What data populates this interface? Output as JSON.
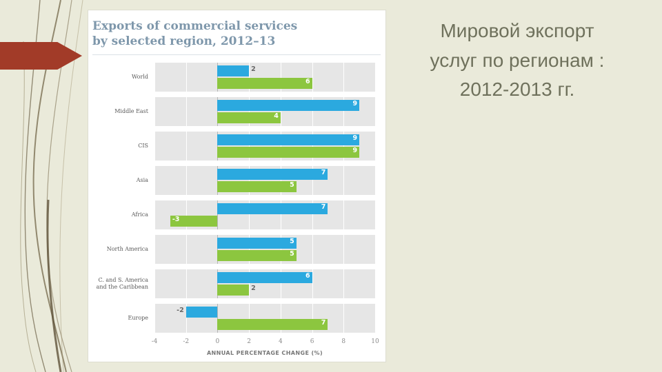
{
  "slide": {
    "title_lines": [
      "Мировой экспорт",
      "услуг по регионам :",
      "2012-2013 гг."
    ],
    "colors": {
      "background": "#eaeada",
      "arrow": "#a23b28",
      "slide_title_text": "#6f715c",
      "chart_title_text": "#7e97ab",
      "band": "#e6e6e6",
      "bar_blue": "#2ba9df",
      "bar_green": "#8cc63f"
    }
  },
  "chart": {
    "title": "Exports of commercial services by selected region, 2012–13",
    "axis_title": "ANNUAL PERCENTAGE CHANGE (%)",
    "ticks": [
      -4,
      -2,
      0,
      2,
      4,
      6,
      8,
      10
    ]
  },
  "chart_data": {
    "type": "bar",
    "orientation": "horizontal",
    "title": "Exports of commercial services by selected region, 2012–13",
    "xlabel": "ANNUAL PERCENTAGE CHANGE (%)",
    "xlim": [
      -4,
      10
    ],
    "grid": true,
    "legend": "none",
    "categories": [
      "World",
      "Middle East",
      "CIS",
      "Asia",
      "Africa",
      "North America",
      "C. and S. America and the Caribbean",
      "Europe"
    ],
    "series": [
      {
        "name": "Blue (top bar)",
        "color": "#2ba9df",
        "values": [
          2,
          9,
          9,
          7,
          7,
          5,
          6,
          -2
        ]
      },
      {
        "name": "Green (bottom bar)",
        "color": "#8cc63f",
        "values": [
          6,
          4,
          9,
          5,
          -3,
          5,
          2,
          7
        ]
      }
    ]
  }
}
